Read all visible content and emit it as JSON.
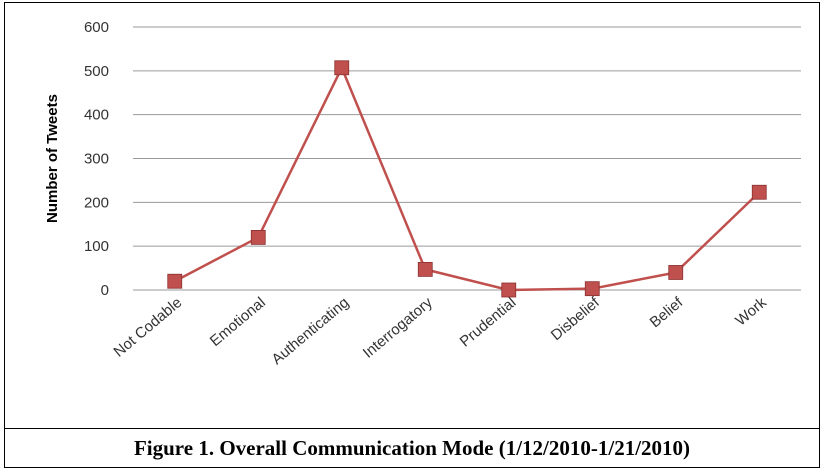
{
  "chart_data": {
    "type": "line",
    "title": "",
    "xlabel": "",
    "ylabel": "Number of Tweets",
    "categories": [
      "Not Codable",
      "Emotional",
      "Authenticating",
      "Interrogatory",
      "Prudential",
      "Disbelief",
      "Belief",
      "Work"
    ],
    "series": [
      {
        "values": [
          20,
          120,
          507,
          47,
          0,
          3,
          40,
          223
        ]
      }
    ],
    "ylim": [
      0,
      600
    ],
    "yticks": [
      0,
      100,
      200,
      300,
      400,
      500,
      600
    ],
    "grid": true,
    "legend": "none",
    "line_color": "#c0504d",
    "marker": "square"
  },
  "caption": "Figure 1. Overall Communication Mode (1/12/2010-1/21/2010)"
}
